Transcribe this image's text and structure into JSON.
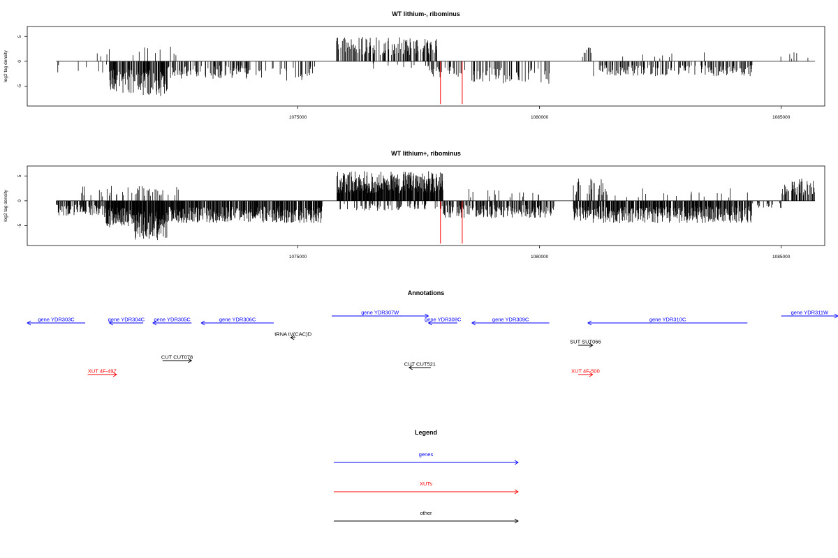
{
  "chart_data": [
    {
      "type": "bar",
      "title": "WT lithium-, ribominus",
      "xlabel": "",
      "ylabel": "log2 tag density",
      "xlim": [
        1069400,
        1085900
      ],
      "ylim": [
        -9,
        7
      ],
      "x_ticks": [
        "1075000",
        "1080000",
        "1085000"
      ],
      "y_ticks": [
        "-5",
        "0",
        "5"
      ],
      "x_tick_values": [
        1075000,
        1080000,
        1085000
      ],
      "y_tick_values": [
        -5,
        0,
        5
      ],
      "segments": [
        {
          "start": 1070000,
          "end": 1071500,
          "sign": -1,
          "density": 0.06,
          "amp": 2.5
        },
        {
          "start": 1070800,
          "end": 1071300,
          "sign": 1,
          "density": 0.02,
          "amp": 2.5
        },
        {
          "start": 1071100,
          "end": 1071800,
          "sign": -1,
          "density": 0.5,
          "amp": 6.5
        },
        {
          "start": 1071800,
          "end": 1072300,
          "sign": -1,
          "density": 0.8,
          "amp": 7.0
        },
        {
          "start": 1071500,
          "end": 1072500,
          "sign": 1,
          "density": 0.05,
          "amp": 3.0
        },
        {
          "start": 1072300,
          "end": 1074000,
          "sign": -1,
          "density": 0.35,
          "amp": 3.5
        },
        {
          "start": 1074000,
          "end": 1075500,
          "sign": -1,
          "density": 0.12,
          "amp": 4.0
        },
        {
          "start": 1075800,
          "end": 1077900,
          "sign": 1,
          "density": 0.45,
          "amp": 5.0
        },
        {
          "start": 1076500,
          "end": 1077800,
          "sign": -1,
          "density": 0.08,
          "amp": 1.5
        },
        {
          "start": 1077700,
          "end": 1078500,
          "sign": -1,
          "density": 0.3,
          "amp": 3.5
        },
        {
          "start": 1078600,
          "end": 1080200,
          "sign": -1,
          "density": 0.25,
          "amp": 4.5
        },
        {
          "start": 1080800,
          "end": 1081100,
          "sign": 1,
          "density": 0.2,
          "amp": 2.8
        },
        {
          "start": 1081100,
          "end": 1084400,
          "sign": -1,
          "density": 0.35,
          "amp": 3.0
        },
        {
          "start": 1081200,
          "end": 1083800,
          "sign": 1,
          "density": 0.04,
          "amp": 1.8
        },
        {
          "start": 1084800,
          "end": 1085700,
          "sign": 1,
          "density": 0.08,
          "amp": 2.0
        }
      ],
      "highlights": [
        {
          "x": 1077950,
          "value": -8.6,
          "color": "#ff0000"
        },
        {
          "x": 1078400,
          "value": -8.6,
          "color": "#ff0000"
        }
      ],
      "seed": 7
    },
    {
      "type": "bar",
      "title": "WT lithium+, ribominus",
      "xlabel": "",
      "ylabel": "log2 tag density",
      "xlim": [
        1069400,
        1085900
      ],
      "ylim": [
        -9,
        7
      ],
      "x_ticks": [
        "1075000",
        "1080000",
        "1085000"
      ],
      "y_ticks": [
        "-5",
        "0",
        "5"
      ],
      "x_tick_values": [
        1075000,
        1080000,
        1085000
      ],
      "y_tick_values": [
        -5,
        0,
        5
      ],
      "segments": [
        {
          "start": 1070000,
          "end": 1071000,
          "sign": -1,
          "density": 0.6,
          "amp": 3.0
        },
        {
          "start": 1070500,
          "end": 1072600,
          "sign": 1,
          "density": 0.15,
          "amp": 3.0
        },
        {
          "start": 1071000,
          "end": 1071600,
          "sign": -1,
          "density": 0.9,
          "amp": 5.5
        },
        {
          "start": 1071600,
          "end": 1072300,
          "sign": -1,
          "density": 0.95,
          "amp": 8.0
        },
        {
          "start": 1072300,
          "end": 1075500,
          "sign": -1,
          "density": 0.75,
          "amp": 4.5
        },
        {
          "start": 1075800,
          "end": 1078000,
          "sign": 1,
          "density": 0.9,
          "amp": 6.0
        },
        {
          "start": 1075800,
          "end": 1078000,
          "sign": -1,
          "density": 0.25,
          "amp": 2.0
        },
        {
          "start": 1078000,
          "end": 1080300,
          "sign": -1,
          "density": 0.55,
          "amp": 3.5
        },
        {
          "start": 1078500,
          "end": 1080000,
          "sign": 1,
          "density": 0.06,
          "amp": 2.5
        },
        {
          "start": 1080700,
          "end": 1081400,
          "sign": 1,
          "density": 0.35,
          "amp": 4.5
        },
        {
          "start": 1080700,
          "end": 1084400,
          "sign": -1,
          "density": 0.7,
          "amp": 4.5
        },
        {
          "start": 1081500,
          "end": 1084300,
          "sign": 1,
          "density": 0.04,
          "amp": 2.5
        },
        {
          "start": 1084400,
          "end": 1085000,
          "sign": -1,
          "density": 0.2,
          "amp": 1.5
        },
        {
          "start": 1085000,
          "end": 1085700,
          "sign": 1,
          "density": 0.6,
          "amp": 4.5
        }
      ],
      "highlights": [
        {
          "x": 1077950,
          "value": -8.6,
          "color": "#ff0000"
        },
        {
          "x": 1078400,
          "value": -8.6,
          "color": "#ff0000"
        }
      ],
      "seed": 19
    }
  ],
  "annotations": {
    "title": "Annotations",
    "xlim": [
      1069400,
      1085900
    ],
    "items": [
      {
        "label": "gene YDR303C",
        "start": 1069400,
        "end": 1070600,
        "strand": "-",
        "row": 0,
        "color": "#0000ff"
      },
      {
        "label": "gene YDR304C",
        "start": 1071100,
        "end": 1071800,
        "strand": "-",
        "row": 0,
        "color": "#0000ff"
      },
      {
        "label": "gene YDR305C",
        "start": 1072000,
        "end": 1072800,
        "strand": "-",
        "row": 0,
        "color": "#0000ff"
      },
      {
        "label": "gene YDR306C",
        "start": 1073000,
        "end": 1074500,
        "strand": "-",
        "row": 0,
        "color": "#0000ff"
      },
      {
        "label": "gene YDR307W",
        "start": 1075700,
        "end": 1077700,
        "strand": "+",
        "row": 0,
        "color": "#0000ff",
        "raised": true
      },
      {
        "label": "gene YDR308C",
        "start": 1077700,
        "end": 1078300,
        "strand": "-",
        "row": 0,
        "color": "#0000ff"
      },
      {
        "label": "gene YDR309C",
        "start": 1078600,
        "end": 1080200,
        "strand": "-",
        "row": 0,
        "color": "#0000ff"
      },
      {
        "label": "gene YDR310C",
        "start": 1081000,
        "end": 1084300,
        "strand": "-",
        "row": 0,
        "color": "#0000ff"
      },
      {
        "label": "gene YDR311W",
        "start": 1085000,
        "end": 1086300,
        "strand": "+",
        "row": 0,
        "color": "#0000ff",
        "raised": true
      },
      {
        "label": "tRNA tV(CAC)D",
        "start": 1074850,
        "end": 1074950,
        "strand": "-",
        "row": 1,
        "color": "#000000"
      },
      {
        "label": "SUT SUT066",
        "start": 1080800,
        "end": 1081100,
        "strand": "+",
        "row": 2,
        "color": "#000000"
      },
      {
        "label": "CUT CUT078",
        "start": 1072200,
        "end": 1072800,
        "strand": "+",
        "row": 3,
        "color": "#000000"
      },
      {
        "label": "CUT CUT521",
        "start": 1077300,
        "end": 1077750,
        "strand": "-",
        "row": 4,
        "color": "#000000"
      },
      {
        "label": "XUT 4F-497",
        "start": 1070650,
        "end": 1071250,
        "strand": "+",
        "row": 5,
        "color": "#ff0000"
      },
      {
        "label": "XUT 4F-500",
        "start": 1080800,
        "end": 1081100,
        "strand": "+",
        "row": 5,
        "color": "#ff0000"
      }
    ]
  },
  "legend": {
    "title": "Legend",
    "entries": [
      {
        "label": "genes",
        "color": "#0000ff"
      },
      {
        "label": "XUTs",
        "color": "#ff0000"
      },
      {
        "label": "other",
        "color": "#000000"
      }
    ]
  }
}
